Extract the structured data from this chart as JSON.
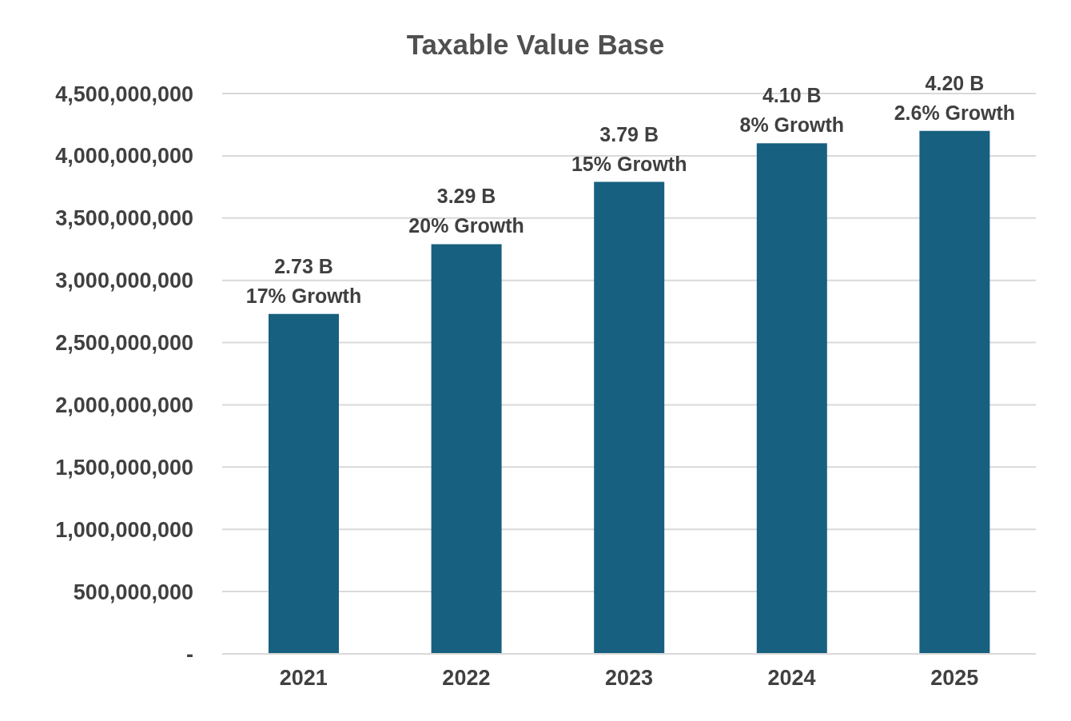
{
  "chart_data": {
    "type": "bar",
    "title": "Taxable Value Base",
    "categories": [
      "2021",
      "2022",
      "2023",
      "2024",
      "2025"
    ],
    "values": [
      2730000000,
      3290000000,
      3790000000,
      4100000000,
      4200000000
    ],
    "value_labels": [
      "2.73 B\n17% Growth",
      "3.29 B\n20% Growth",
      "3.79 B\n15% Growth",
      "4.10 B\n8% Growth",
      "4.20 B\n2.6% Growth"
    ],
    "color": "#17607f",
    "ylim": [
      0,
      4500000000
    ],
    "yticks": [
      {
        "value": 0,
        "label": "-"
      },
      {
        "value": 500000000,
        "label": "500,000,000"
      },
      {
        "value": 1000000000,
        "label": "1,000,000,000"
      },
      {
        "value": 1500000000,
        "label": "1,500,000,000"
      },
      {
        "value": 2000000000,
        "label": "2,000,000,000"
      },
      {
        "value": 2500000000,
        "label": "2,500,000,000"
      },
      {
        "value": 3000000000,
        "label": "3,000,000,000"
      },
      {
        "value": 3500000000,
        "label": "3,500,000,000"
      },
      {
        "value": 4000000000,
        "label": "4,000,000,000"
      },
      {
        "value": 4500000000,
        "label": "4,500,000,000"
      }
    ],
    "grid": "y"
  }
}
